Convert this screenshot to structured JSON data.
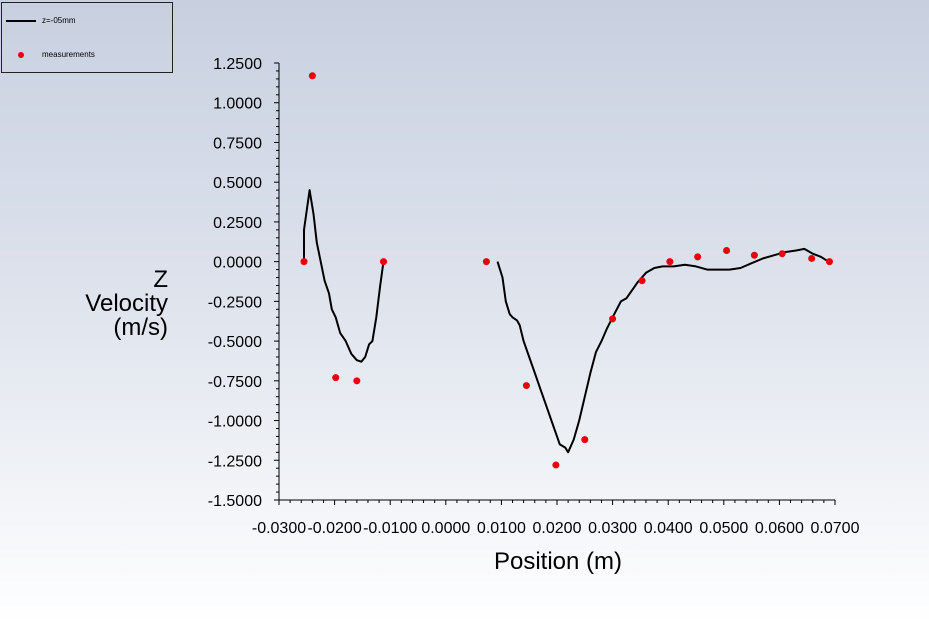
{
  "chart_data": {
    "type": "scatter",
    "xlabel": "Position (m)",
    "ylabel_lines": [
      "Z",
      "Velocity",
      "(m/s)"
    ],
    "xlim": [
      -0.03,
      0.07
    ],
    "ylim": [
      -1.5,
      1.25
    ],
    "x_ticks": [
      "-0.0300",
      "-0.0200",
      "-0.0100",
      "0.0000",
      "0.0100",
      "0.0200",
      "0.0300",
      "0.0400",
      "0.0500",
      "0.0600",
      "0.0700"
    ],
    "x_tick_values": [
      -0.03,
      -0.02,
      -0.01,
      0.0,
      0.01,
      0.02,
      0.03,
      0.04,
      0.05,
      0.06,
      0.07
    ],
    "y_ticks": [
      "1.2500",
      "1.0000",
      "0.7500",
      "0.5000",
      "0.2500",
      "0.0000",
      "-0.2500",
      "-0.5000",
      "-0.7500",
      "-1.0000",
      "-1.2500",
      "-1.5000"
    ],
    "y_tick_values": [
      1.25,
      1.0,
      0.75,
      0.5,
      0.25,
      0.0,
      -0.25,
      -0.5,
      -0.75,
      -1.0,
      -1.25,
      -1.5
    ],
    "grid": false,
    "legend_position": "top-left",
    "series": [
      {
        "name": "z=-05mm",
        "kind": "line",
        "color": "#000000",
        "segments": [
          [
            [
              -0.0255,
              0.0
            ],
            [
              -0.0255,
              0.2
            ],
            [
              -0.0245,
              0.45
            ],
            [
              -0.0238,
              0.3
            ],
            [
              -0.0232,
              0.12
            ],
            [
              -0.0225,
              0.0
            ],
            [
              -0.0218,
              -0.12
            ],
            [
              -0.021,
              -0.2
            ],
            [
              -0.0205,
              -0.3
            ],
            [
              -0.0198,
              -0.35
            ],
            [
              -0.019,
              -0.45
            ],
            [
              -0.018,
              -0.5
            ],
            [
              -0.017,
              -0.58
            ],
            [
              -0.016,
              -0.62
            ],
            [
              -0.0152,
              -0.63
            ],
            [
              -0.0145,
              -0.6
            ],
            [
              -0.0138,
              -0.52
            ],
            [
              -0.0132,
              -0.5
            ],
            [
              -0.0125,
              -0.35
            ],
            [
              -0.0118,
              -0.15
            ],
            [
              -0.0112,
              0.0
            ]
          ],
          [
            [
              0.0093,
              0.0
            ],
            [
              0.0102,
              -0.1
            ],
            [
              0.0108,
              -0.25
            ],
            [
              0.0115,
              -0.33
            ],
            [
              0.012,
              -0.35
            ],
            [
              0.0128,
              -0.37
            ],
            [
              0.0133,
              -0.4
            ],
            [
              0.014,
              -0.5
            ],
            [
              0.015,
              -0.6
            ],
            [
              0.016,
              -0.7
            ],
            [
              0.017,
              -0.8
            ],
            [
              0.018,
              -0.9
            ],
            [
              0.019,
              -1.0
            ],
            [
              0.02,
              -1.1
            ],
            [
              0.0205,
              -1.15
            ],
            [
              0.0215,
              -1.17
            ],
            [
              0.022,
              -1.2
            ],
            [
              0.023,
              -1.12
            ],
            [
              0.024,
              -1.0
            ],
            [
              0.025,
              -0.85
            ],
            [
              0.026,
              -0.7
            ],
            [
              0.027,
              -0.57
            ],
            [
              0.028,
              -0.5
            ],
            [
              0.029,
              -0.42
            ],
            [
              0.03,
              -0.35
            ],
            [
              0.0315,
              -0.25
            ],
            [
              0.0325,
              -0.23
            ],
            [
              0.0335,
              -0.18
            ],
            [
              0.0345,
              -0.13
            ],
            [
              0.036,
              -0.07
            ],
            [
              0.0375,
              -0.04
            ],
            [
              0.039,
              -0.03
            ],
            [
              0.041,
              -0.03
            ],
            [
              0.043,
              -0.02
            ],
            [
              0.045,
              -0.03
            ],
            [
              0.047,
              -0.05
            ],
            [
              0.049,
              -0.05
            ],
            [
              0.051,
              -0.05
            ],
            [
              0.053,
              -0.04
            ],
            [
              0.055,
              -0.01
            ],
            [
              0.057,
              0.02
            ],
            [
              0.059,
              0.04
            ],
            [
              0.061,
              0.06
            ],
            [
              0.063,
              0.07
            ],
            [
              0.0645,
              0.08
            ],
            [
              0.066,
              0.05
            ],
            [
              0.0675,
              0.03
            ],
            [
              0.0688,
              0.0
            ]
          ]
        ]
      },
      {
        "name": "measurements",
        "kind": "markers",
        "color": "#e8000b",
        "points": [
          [
            -0.0255,
            0.0
          ],
          [
            -0.024,
            1.17
          ],
          [
            -0.0198,
            -0.73
          ],
          [
            -0.016,
            -0.75
          ],
          [
            -0.0112,
            0.0
          ],
          [
            0.0073,
            0.0
          ],
          [
            0.0145,
            -0.78
          ],
          [
            0.0198,
            -1.28
          ],
          [
            0.025,
            -1.12
          ],
          [
            0.03,
            -0.36
          ],
          [
            0.0353,
            -0.12
          ],
          [
            0.0403,
            0.0
          ],
          [
            0.0453,
            0.03
          ],
          [
            0.0505,
            0.07
          ],
          [
            0.0555,
            0.04
          ],
          [
            0.0605,
            0.05
          ],
          [
            0.0658,
            0.02
          ],
          [
            0.069,
            0.0
          ]
        ]
      }
    ]
  },
  "legend": {
    "items": [
      {
        "label": "z=-05mm"
      },
      {
        "label": "measurements"
      }
    ]
  }
}
